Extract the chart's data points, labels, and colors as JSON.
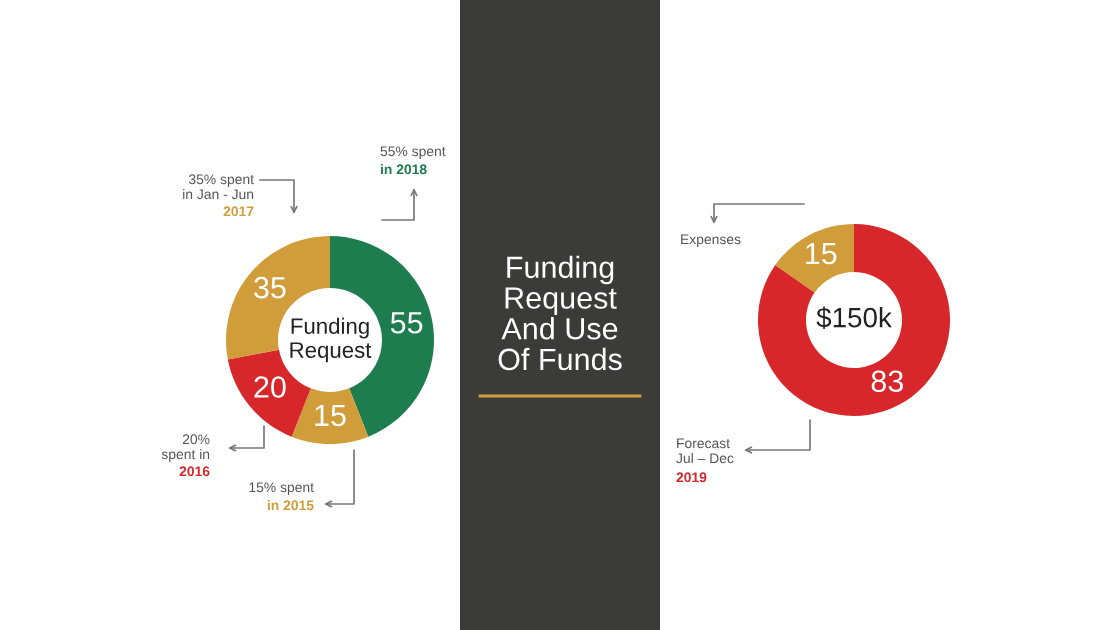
{
  "chart_data": [
    {
      "type": "donut",
      "title": "Funding\nRequest",
      "categories": [
        null,
        null,
        null,
        null
      ],
      "values": [
        55,
        15,
        20,
        35
      ],
      "colors": [
        "#1d7d4e",
        "#d19d3b",
        "#d8272b",
        "#d19d3b"
      ],
      "data_labels": true,
      "legend": false,
      "annotations": [
        "55% spent",
        "in 2018",
        "35% spent\nin Jan - Jun",
        "2017",
        "20%\nspent in",
        "2016",
        "15% spent",
        "in 2015"
      ]
    },
    {
      "type": "other",
      "title": "Funding\nRequest\nAnd Use\nOf Funds"
    },
    {
      "type": "donut",
      "title": "$150k",
      "categories": [
        null,
        null
      ],
      "values": [
        83,
        15
      ],
      "colors": [
        "#d8272b",
        "#d19d3b"
      ],
      "data_labels": true,
      "legend": false,
      "annotations": [
        "Expenses",
        "Forecast\nJul – Dec",
        "2019"
      ]
    }
  ]
}
